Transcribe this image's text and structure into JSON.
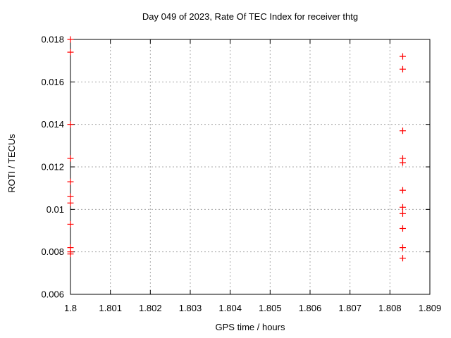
{
  "chart_data": {
    "type": "scatter",
    "title": "Day 049 of 2023, Rate Of TEC Index for receiver thtg",
    "xlabel": "GPS time / hours",
    "ylabel": "ROTI / TECUs",
    "xlim": [
      1.8,
      1.809
    ],
    "ylim": [
      0.006,
      0.018
    ],
    "xticks": [
      {
        "v": 1.8,
        "label": "1.8"
      },
      {
        "v": 1.801,
        "label": "1.801"
      },
      {
        "v": 1.802,
        "label": "1.802"
      },
      {
        "v": 1.803,
        "label": "1.803"
      },
      {
        "v": 1.804,
        "label": "1.804"
      },
      {
        "v": 1.805,
        "label": "1.805"
      },
      {
        "v": 1.806,
        "label": "1.806"
      },
      {
        "v": 1.807,
        "label": "1.807"
      },
      {
        "v": 1.808,
        "label": "1.808"
      },
      {
        "v": 1.809,
        "label": "1.809"
      }
    ],
    "yticks": [
      {
        "v": 0.006,
        "label": "0.006"
      },
      {
        "v": 0.008,
        "label": "0.008"
      },
      {
        "v": 0.01,
        "label": "0.01"
      },
      {
        "v": 0.012,
        "label": "0.012"
      },
      {
        "v": 0.014,
        "label": "0.014"
      },
      {
        "v": 0.016,
        "label": "0.016"
      },
      {
        "v": 0.018,
        "label": "0.018"
      }
    ],
    "grid": true,
    "legend": "none",
    "marker": "plus",
    "colors": {
      "marker": "#ff0000",
      "axis": "#000000",
      "grid": "#a8a8a8",
      "background": "#ffffff"
    },
    "series": [
      {
        "name": "ROTI",
        "points": [
          [
            1.8,
            0.018
          ],
          [
            1.8,
            0.0174
          ],
          [
            1.8,
            0.014
          ],
          [
            1.8,
            0.0124
          ],
          [
            1.8,
            0.0113
          ],
          [
            1.8,
            0.0106
          ],
          [
            1.8,
            0.0103
          ],
          [
            1.8,
            0.0093
          ],
          [
            1.8,
            0.0082
          ],
          [
            1.8,
            0.008
          ],
          [
            1.8,
            0.0079
          ],
          [
            1.80832,
            0.0172
          ],
          [
            1.80832,
            0.0166
          ],
          [
            1.80832,
            0.0137
          ],
          [
            1.80832,
            0.0124
          ],
          [
            1.80832,
            0.0122
          ],
          [
            1.80832,
            0.0109
          ],
          [
            1.80832,
            0.0101
          ],
          [
            1.80832,
            0.0098
          ],
          [
            1.80832,
            0.0091
          ],
          [
            1.80832,
            0.0082
          ],
          [
            1.80832,
            0.0077
          ]
        ]
      }
    ]
  }
}
